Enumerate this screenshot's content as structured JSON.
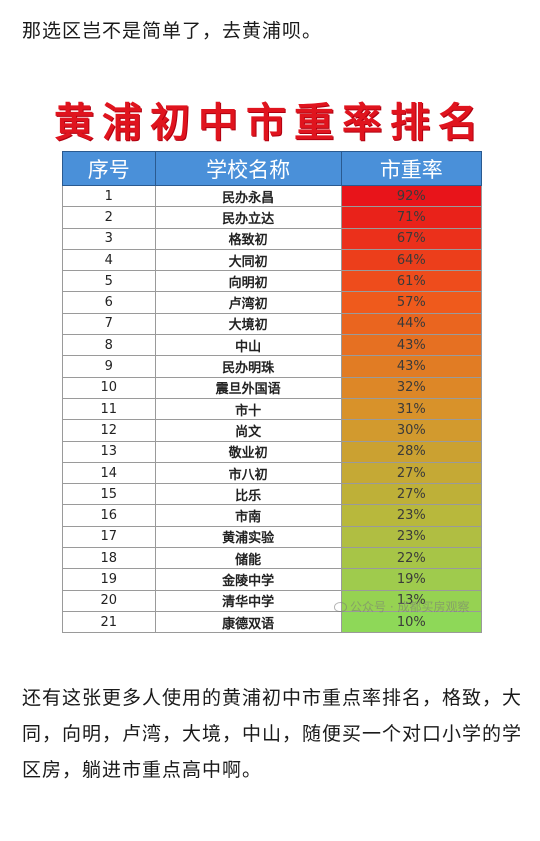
{
  "intro_text": "那选区岂不是简单了，去黄浦呗。",
  "chart": {
    "title": "黄浦初中市重率排名",
    "headers": [
      "序号",
      "学校名称",
      "市重率"
    ],
    "watermark": "公众号 · 成都买房观察"
  },
  "chart_data": {
    "type": "table",
    "title": "黄浦初中市重率排名",
    "columns": [
      "序号",
      "学校名称",
      "市重率"
    ],
    "rows": [
      [
        "1",
        "民办永昌",
        "92%"
      ],
      [
        "2",
        "民办立达",
        "71%"
      ],
      [
        "3",
        "格致初",
        "67%"
      ],
      [
        "4",
        "大同初",
        "64%"
      ],
      [
        "5",
        "向明初",
        "61%"
      ],
      [
        "6",
        "卢湾初",
        "57%"
      ],
      [
        "7",
        "大境初",
        "44%"
      ],
      [
        "8",
        "中山",
        "43%"
      ],
      [
        "9",
        "民办明珠",
        "43%"
      ],
      [
        "10",
        "震旦外国语",
        "32%"
      ],
      [
        "11",
        "市十",
        "31%"
      ],
      [
        "12",
        "尚文",
        "30%"
      ],
      [
        "13",
        "敬业初",
        "28%"
      ],
      [
        "14",
        "市八初",
        "27%"
      ],
      [
        "15",
        "比乐",
        "27%"
      ],
      [
        "16",
        "市南",
        "23%"
      ],
      [
        "17",
        "黄浦实验",
        "23%"
      ],
      [
        "18",
        "储能",
        "22%"
      ],
      [
        "19",
        "金陵中学",
        "19%"
      ],
      [
        "20",
        "清华中学",
        "13%"
      ],
      [
        "21",
        "康德双语",
        "10%"
      ]
    ],
    "rate_color_scale": [
      "#e8141a",
      "#ef5a1c",
      "#d8922a",
      "#b8b83c",
      "#8ed858"
    ]
  },
  "closing_text": "还有这张更多人使用的黄浦初中市重点率排名，格致，大同，向明，卢湾，大境，中山，随便买一个对口小学的学区房，躺进市重点高中啊。"
}
